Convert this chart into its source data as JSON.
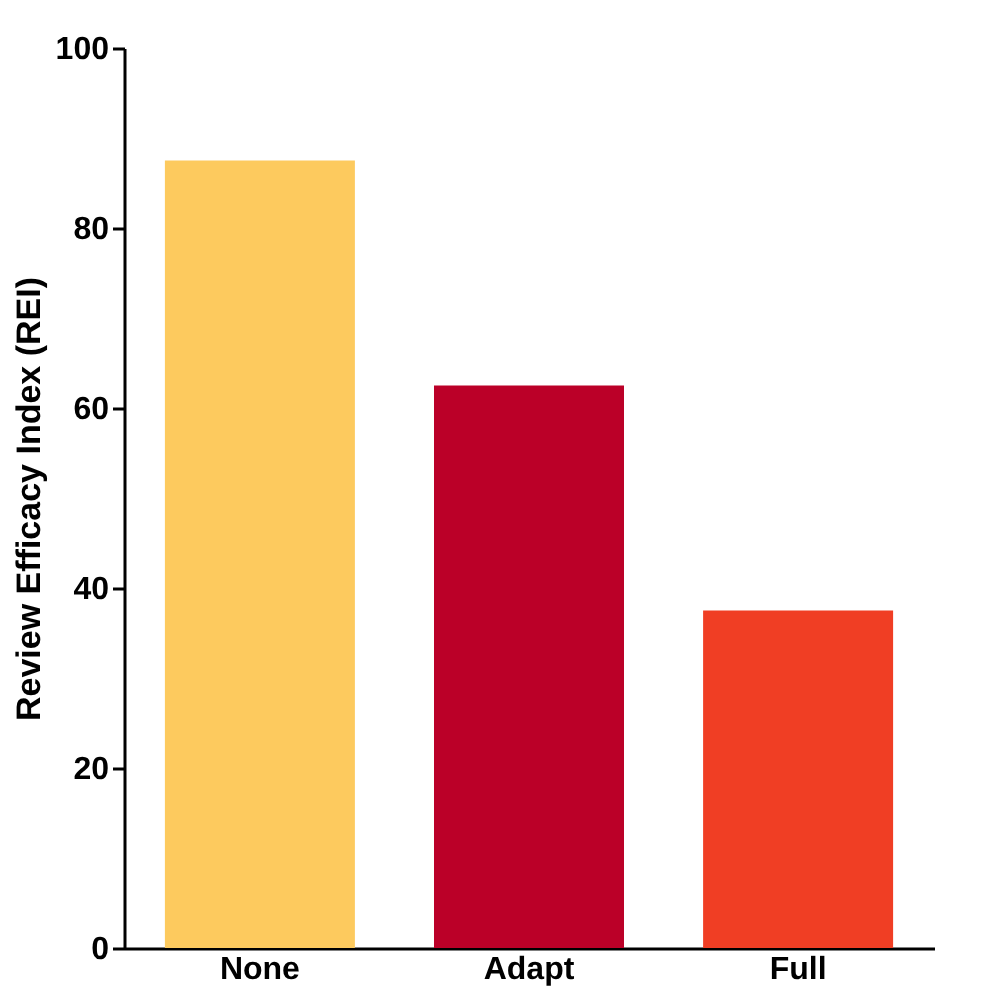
{
  "chart_data": {
    "type": "bar",
    "ylabel": "Review Efficacy Index (REI)",
    "categories": [
      "None",
      "Adapt",
      "Full"
    ],
    "values": [
      87.5,
      62.5,
      37.5
    ],
    "colors": [
      "#fdca5e",
      "#bb0028",
      "#f03e24"
    ],
    "ylim": [
      0,
      100
    ],
    "yticks": [
      0,
      20,
      40,
      60,
      80,
      100
    ],
    "grid": false
  }
}
